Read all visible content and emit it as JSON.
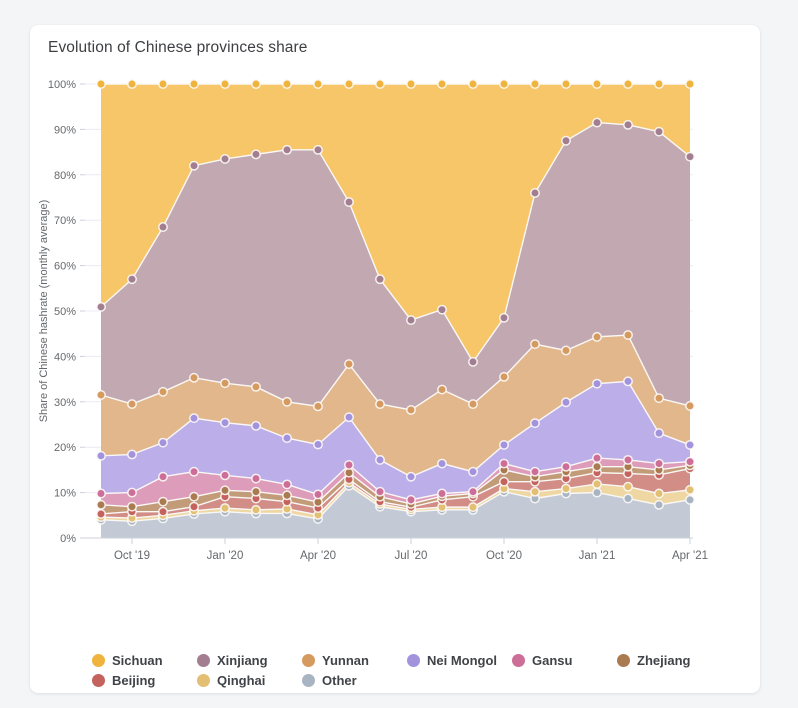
{
  "card": {
    "title": "Evolution of Chinese provinces share"
  },
  "chart_data": {
    "type": "area",
    "stacking": "percent",
    "title": "Evolution of Chinese provinces share",
    "xlabel": "",
    "ylabel": "Share of Chinese hashrate (monthly average)",
    "ylim": [
      0,
      100
    ],
    "grid": true,
    "legend_position": "bottom",
    "ytick_labels": [
      "0%",
      "10%",
      "20%",
      "30%",
      "40%",
      "50%",
      "60%",
      "70%",
      "80%",
      "90%",
      "100%"
    ],
    "xtick_labels": [
      "Oct '19",
      "Jan '20",
      "Apr '20",
      "Jul '20",
      "Oct '20",
      "Jan '21",
      "Apr '21"
    ],
    "xtick_month_index": [
      1,
      4,
      7,
      10,
      13,
      16,
      19
    ],
    "months": [
      "Sep '19",
      "Oct '19",
      "Nov '19",
      "Dec '19",
      "Jan '20",
      "Feb '20",
      "Mar '20",
      "Apr '20",
      "May '20",
      "Jun '20",
      "Jul '20",
      "Aug '20",
      "Sep '20",
      "Oct '20",
      "Nov '20",
      "Dec '20",
      "Jan '21",
      "Feb '21",
      "Mar '21",
      "Apr '21"
    ],
    "series_bottom_to_top": [
      {
        "name": "Other",
        "dot_color": "#a9b4c3",
        "fill_color": "#c3cad5",
        "values": [
          4.0,
          3.7,
          4.3,
          5.3,
          5.8,
          5.4,
          5.4,
          4.2,
          11.5,
          6.9,
          5.8,
          6.2,
          6.2,
          10.2,
          8.7,
          9.8,
          10.0,
          8.7,
          7.3,
          8.4
        ]
      },
      {
        "name": "Qinghai",
        "dot_color": "#e2bf72",
        "fill_color": "#eed7a2",
        "values": [
          0.6,
          0.7,
          0.7,
          0.7,
          0.8,
          0.8,
          1.0,
          0.9,
          0.7,
          0.6,
          0.5,
          0.6,
          0.6,
          0.7,
          1.5,
          1.1,
          1.9,
          2.6,
          2.5,
          2.2
        ]
      },
      {
        "name": "Beijing",
        "dot_color": "#c4635e",
        "fill_color": "#d18d86",
        "values": [
          0.7,
          1.4,
          0.8,
          0.9,
          2.5,
          2.5,
          1.6,
          1.5,
          0.7,
          0.5,
          0.5,
          1.6,
          2.3,
          1.5,
          2.2,
          2.2,
          2.5,
          2.9,
          4.1,
          4.7
        ]
      },
      {
        "name": "Zhejiang",
        "dot_color": "#aa7a50",
        "fill_color": "#c29c79",
        "values": [
          2.0,
          1.1,
          2.2,
          2.2,
          1.4,
          1.5,
          1.4,
          1.3,
          1.5,
          1.1,
          0.7,
          0.8,
          0.7,
          2.6,
          1.1,
          1.5,
          1.3,
          1.5,
          1.1,
          0.7
        ]
      },
      {
        "name": "Gansu",
        "dot_color": "#cc6e97",
        "fill_color": "#dd9cba",
        "values": [
          2.5,
          3.1,
          5.5,
          5.5,
          3.3,
          2.9,
          2.4,
          1.7,
          1.7,
          1.1,
          0.9,
          0.6,
          0.4,
          1.4,
          1.1,
          1.1,
          1.9,
          1.5,
          1.4,
          0.8
        ]
      },
      {
        "name": "Nei Mongol",
        "dot_color": "#a393dd",
        "fill_color": "#bcaee9",
        "values": [
          8.3,
          8.4,
          7.5,
          11.8,
          11.6,
          11.6,
          10.2,
          11.0,
          10.5,
          7.0,
          5.1,
          6.6,
          4.4,
          4.1,
          10.7,
          14.2,
          16.4,
          17.3,
          6.7,
          3.7
        ]
      },
      {
        "name": "Yunnan",
        "dot_color": "#d59a5f",
        "fill_color": "#e2b78c",
        "values": [
          13.4,
          11.1,
          11.2,
          8.9,
          8.7,
          8.6,
          8.0,
          8.4,
          11.7,
          12.3,
          14.7,
          16.3,
          14.9,
          15.0,
          17.4,
          11.4,
          10.3,
          10.2,
          7.7,
          8.6
        ]
      },
      {
        "name": "Xinjiang",
        "dot_color": "#a27e90",
        "fill_color": "#c2a8b1",
        "values": [
          19.4,
          27.5,
          36.3,
          46.7,
          49.4,
          51.2,
          55.5,
          56.5,
          35.7,
          27.5,
          19.8,
          17.6,
          9.3,
          13.0,
          33.3,
          46.2,
          47.2,
          46.3,
          58.7,
          54.9
        ]
      },
      {
        "name": "Sichuan",
        "dot_color": "#efb43e",
        "fill_color": "#f6c669",
        "values": [
          49.1,
          43.0,
          31.5,
          18.0,
          16.5,
          15.5,
          14.5,
          14.5,
          26.0,
          43.0,
          52.0,
          49.7,
          61.2,
          51.5,
          24.0,
          12.5,
          8.5,
          9.0,
          10.5,
          16.0
        ]
      }
    ],
    "legend_order": [
      "Sichuan",
      "Xinjiang",
      "Yunnan",
      "Nei Mongol",
      "Gansu",
      "Zhejiang",
      "Beijing",
      "Qinghai",
      "Other"
    ]
  },
  "style": {
    "grid_color": "#ececf0",
    "axis_line_color": "#ccd2db",
    "tick_color": "#ccd2db",
    "label_color": "#65686c",
    "boundary_line_color": "#faf8f6"
  }
}
